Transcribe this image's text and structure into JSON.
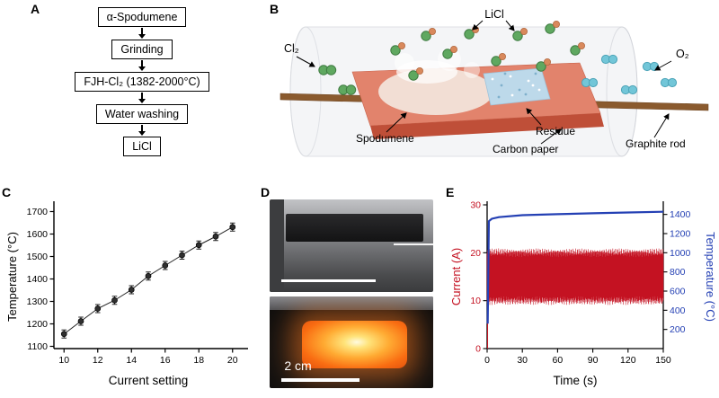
{
  "panels": {
    "a": {
      "label": "A",
      "steps": [
        "α-Spodumene",
        "Grinding",
        "FJH-Cl₂ (1382-2000°C)",
        "Water washing",
        "LiCl"
      ]
    },
    "b": {
      "label": "B",
      "labels": {
        "licl": "LiCl",
        "cl2": "Cl₂",
        "o2": "O₂",
        "spodumene": "Spodumene",
        "residue": "Residue",
        "carbon_paper": "Carbon paper",
        "graphite_rod": "Graphite rod"
      }
    },
    "c": {
      "label": "C"
    },
    "d": {
      "label": "D",
      "scale_label": "2 cm"
    },
    "e": {
      "label": "E"
    }
  },
  "chart_data": [
    {
      "id": "temperature-vs-current-setting",
      "type": "scatter",
      "xlabel": "Current setting",
      "ylabel": "Temperature (°C)",
      "x": [
        10,
        11,
        12,
        13,
        14,
        15,
        16,
        17,
        18,
        19,
        20
      ],
      "y": [
        1155,
        1212,
        1268,
        1305,
        1352,
        1413,
        1460,
        1506,
        1551,
        1589,
        1631
      ],
      "yerr": [
        18,
        18,
        18,
        18,
        18,
        18,
        18,
        18,
        18,
        18,
        18
      ],
      "xlim": [
        9.4,
        20.6
      ],
      "ylim": [
        1090,
        1730
      ],
      "xticks": [
        10,
        12,
        14,
        16,
        18,
        20
      ],
      "yticks": [
        1100,
        1200,
        1300,
        1400,
        1500,
        1600,
        1700
      ],
      "grid": false,
      "marker": "filled-circle-with-error-bars",
      "line_color": "#222222"
    },
    {
      "id": "current-and-temperature-vs-time",
      "type": "line",
      "xlabel": "Time (s)",
      "xlim": [
        0,
        150
      ],
      "xticks": [
        0,
        30,
        60,
        90,
        120,
        150
      ],
      "grid": false,
      "left_axis": {
        "label": "Current (A)",
        "color": "#c41222",
        "lim": [
          0,
          30
        ],
        "ticks": [
          0,
          10,
          20,
          30
        ]
      },
      "right_axis": {
        "label": "Temperature (°C)",
        "color": "#2440b4",
        "lim": [
          0,
          1500
        ],
        "ticks": [
          200,
          400,
          600,
          800,
          1000,
          1200,
          1400
        ]
      },
      "series": [
        {
          "name": "Current",
          "axis": "left",
          "color": "#c41222",
          "style": "oscillating-band",
          "band_min": 10,
          "band_max": 20
        },
        {
          "name": "Temperature",
          "axis": "right",
          "color": "#2440b4",
          "style": "line",
          "x": [
            0.5,
            1.5,
            4,
            10,
            30,
            60,
            90,
            120,
            150
          ],
          "y": [
            260,
            1330,
            1355,
            1372,
            1392,
            1403,
            1412,
            1420,
            1428
          ]
        }
      ]
    }
  ]
}
